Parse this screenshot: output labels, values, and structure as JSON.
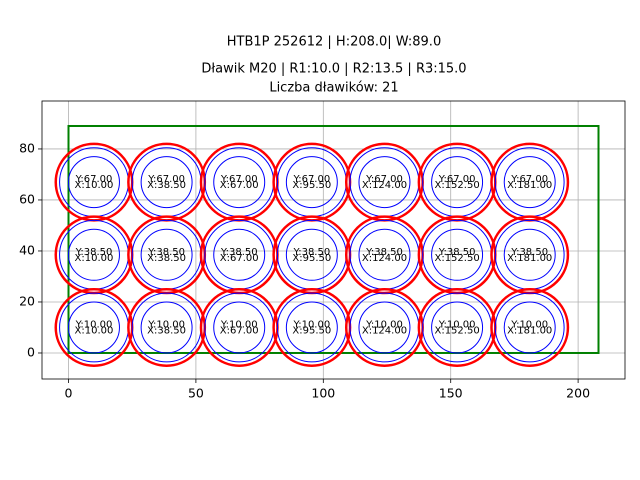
{
  "chart_data": {
    "type": "circles",
    "title": [
      "HTB1P 252612 | H:208.0| W:89.0",
      "Dławik M20 | R1:10.0 | R2:13.5 | R3:15.0",
      "Liczba dławików: 21"
    ],
    "xlim": [
      -10.4,
      218.4
    ],
    "ylim": [
      -10.2,
      98.8
    ],
    "xticks": [
      0,
      50,
      100,
      150,
      200
    ],
    "yticks": [
      0,
      20,
      40,
      60,
      80
    ],
    "grid": true,
    "radii": {
      "r1": 10,
      "r2": 13.5,
      "r3": 15
    },
    "colors": {
      "r1": "#0000ff",
      "r2": "#0000ff",
      "r3": "#ff0000",
      "rect": "#008000"
    },
    "rect": {
      "width": 208,
      "height": 89
    },
    "points": [
      {
        "x": 10,
        "y": 67,
        "label_y": "Y:67.00",
        "label_x": "X:10.00"
      },
      {
        "x": 38.5,
        "y": 67,
        "label_y": "Y:67.00",
        "label_x": "X:38.50"
      },
      {
        "x": 67,
        "y": 67,
        "label_y": "Y:67.00",
        "label_x": "X:67.00"
      },
      {
        "x": 95.5,
        "y": 67,
        "label_y": "Y:67.00",
        "label_x": "X:95.50"
      },
      {
        "x": 124,
        "y": 67,
        "label_y": "Y:67.00",
        "label_x": "X:124.00"
      },
      {
        "x": 152.5,
        "y": 67,
        "label_y": "Y:67.00",
        "label_x": "X:152.50"
      },
      {
        "x": 181,
        "y": 67,
        "label_y": "Y:67.00",
        "label_x": "X:181.00"
      },
      {
        "x": 10,
        "y": 38.5,
        "label_y": "Y:38.50",
        "label_x": "X:10.00"
      },
      {
        "x": 38.5,
        "y": 38.5,
        "label_y": "Y:38.50",
        "label_x": "X:38.50"
      },
      {
        "x": 67,
        "y": 38.5,
        "label_y": "Y:38.50",
        "label_x": "X:67.00"
      },
      {
        "x": 95.5,
        "y": 38.5,
        "label_y": "Y:38.50",
        "label_x": "X:95.50"
      },
      {
        "x": 124,
        "y": 38.5,
        "label_y": "Y:38.50",
        "label_x": "X:124.00"
      },
      {
        "x": 152.5,
        "y": 38.5,
        "label_y": "Y:38.50",
        "label_x": "X:152.50"
      },
      {
        "x": 181,
        "y": 38.5,
        "label_y": "Y:38.50",
        "label_x": "X:181.00"
      },
      {
        "x": 10,
        "y": 10,
        "label_y": "Y:10.00",
        "label_x": "X:10.00"
      },
      {
        "x": 38.5,
        "y": 10,
        "label_y": "Y:10.00",
        "label_x": "X:38.50"
      },
      {
        "x": 67,
        "y": 10,
        "label_y": "Y:10.00",
        "label_x": "X:67.00"
      },
      {
        "x": 95.5,
        "y": 10,
        "label_y": "Y:10.00",
        "label_x": "X:95.50"
      },
      {
        "x": 124,
        "y": 10,
        "label_y": "Y:10.00",
        "label_x": "X:124.00"
      },
      {
        "x": 152.5,
        "y": 10,
        "label_y": "Y:10.00",
        "label_x": "X:152.50"
      },
      {
        "x": 181,
        "y": 10,
        "label_y": "Y:10.00",
        "label_x": "X:181.00"
      }
    ]
  }
}
